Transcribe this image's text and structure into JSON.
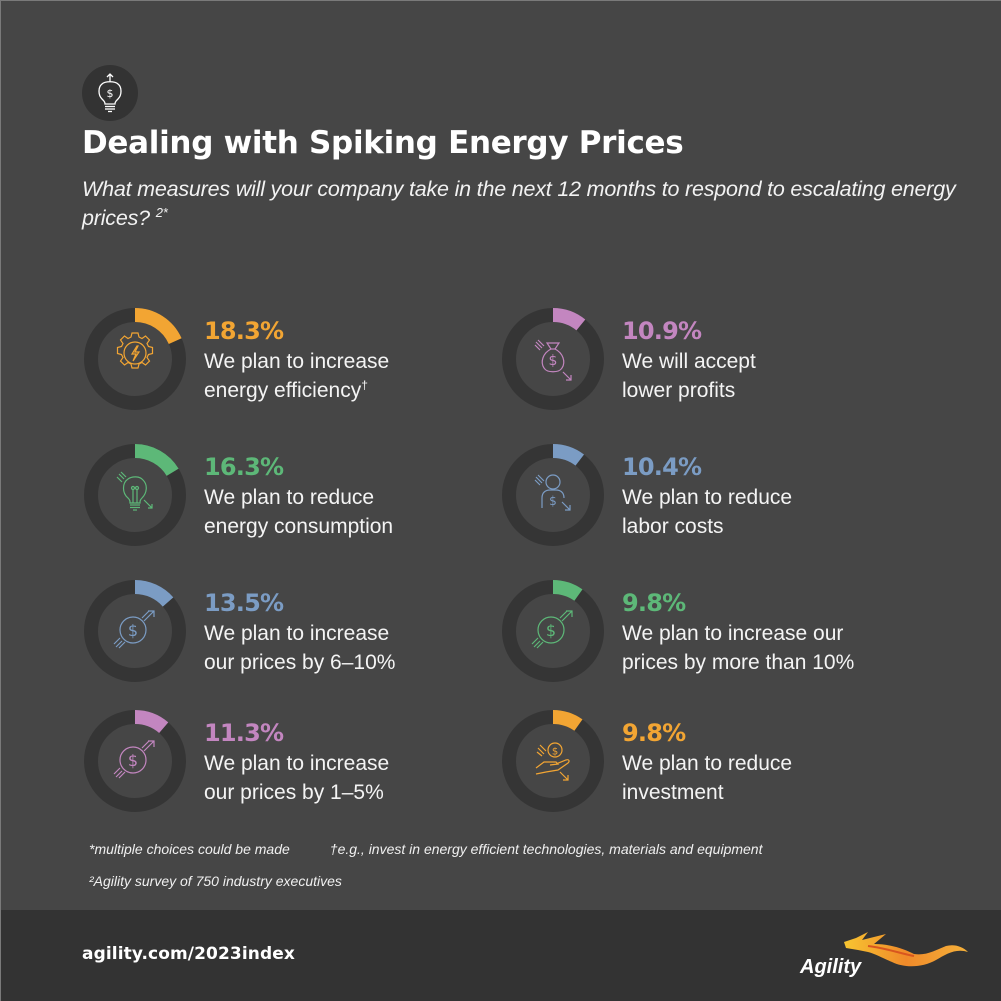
{
  "header": {
    "icon": "lightbulb-dollar-icon",
    "title": "Dealing with Spiking Energy Prices",
    "subtitle": "What measures will your company take in the next 12 months to respond to escalating energy prices?",
    "subtitle_sup": "2*"
  },
  "colors": {
    "background": "#464646",
    "ring_track": "#353535",
    "orange": "#F2A533",
    "green": "#5DB878",
    "blue": "#7B9CC4",
    "purple": "#C386C0",
    "footer": "#333333"
  },
  "items": [
    {
      "pct": "18.3%",
      "value": 18.3,
      "line1": "We plan to increase",
      "line2": "energy efficiency",
      "sup": "†",
      "color": "#F2A533",
      "icon": "gear-lightning-icon"
    },
    {
      "pct": "16.3%",
      "value": 16.3,
      "line1": "We plan to reduce",
      "line2": "energy consumption",
      "sup": "",
      "color": "#5DB878",
      "icon": "lightbulb-down-icon"
    },
    {
      "pct": "13.5%",
      "value": 13.5,
      "line1": "We plan to increase",
      "line2": "our prices by 6–10%",
      "sup": "",
      "color": "#7B9CC4",
      "icon": "dollar-up-icon"
    },
    {
      "pct": "11.3%",
      "value": 11.3,
      "line1": "We plan to increase",
      "line2": "our prices by 1–5%",
      "sup": "",
      "color": "#C386C0",
      "icon": "dollar-up-icon"
    },
    {
      "pct": "10.9%",
      "value": 10.9,
      "line1": "We will accept",
      "line2": "lower profits",
      "sup": "",
      "color": "#C386C0",
      "icon": "money-bag-down-icon"
    },
    {
      "pct": "10.4%",
      "value": 10.4,
      "line1": "We plan to reduce",
      "line2": "labor costs",
      "sup": "",
      "color": "#7B9CC4",
      "icon": "person-dollar-down-icon"
    },
    {
      "pct": "9.8%",
      "value": 9.8,
      "line1": "We plan to increase our",
      "line2": "prices by more than 10%",
      "sup": "",
      "color": "#5DB878",
      "icon": "dollar-up-icon"
    },
    {
      "pct": "9.8%",
      "value": 9.8,
      "line1": "We plan to reduce",
      "line2": "investment",
      "sup": "",
      "color": "#F2A533",
      "icon": "hand-coin-down-icon"
    }
  ],
  "footnotes": {
    "multiple": "*multiple choices could be made",
    "efficiency": "†e.g., invest in energy efficient technologies, materials and equipment",
    "survey": "²Agility survey of 750 industry executives"
  },
  "footer": {
    "url": "agility.com/2023index",
    "logo_text": "Agility"
  },
  "chart_data": {
    "type": "pie",
    "title": "Dealing with Spiking Energy Prices",
    "subtitle": "What measures will your company take in the next 12 months to respond to escalating energy prices?",
    "categories": [
      "We plan to increase energy efficiency",
      "We plan to reduce energy consumption",
      "We plan to increase our prices by 6–10%",
      "We plan to increase our prices by 1–5%",
      "We will accept lower profits",
      "We plan to reduce labor costs",
      "We plan to increase our prices by more than 10%",
      "We plan to reduce investment"
    ],
    "values": [
      18.3,
      16.3,
      13.5,
      11.3,
      10.9,
      10.4,
      9.8,
      9.8
    ],
    "unit": "%",
    "notes": [
      "multiple choices could be made",
      "Agility survey of 750 industry executives"
    ],
    "layout": "8 individual donut gauges in 2 columns x 4 rows"
  }
}
